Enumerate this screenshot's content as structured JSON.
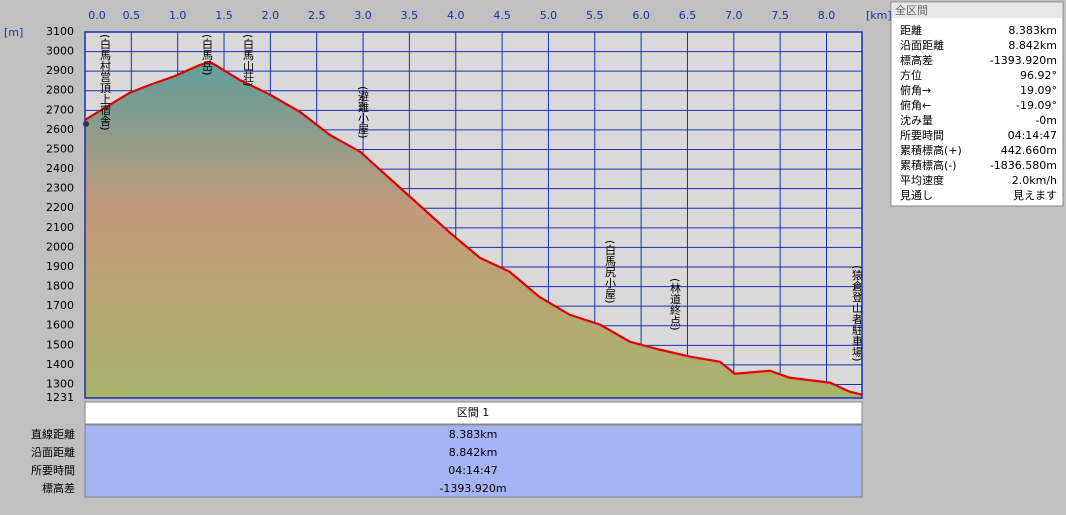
{
  "chart_data": {
    "type": "line",
    "x_unit": "[km]",
    "y_unit": "[m]",
    "x": [
      0,
      0.48,
      0.7,
      0.97,
      1.24,
      1.35,
      1.67,
      2.0,
      2.32,
      2.64,
      2.97,
      3.4,
      3.94,
      4.26,
      4.58,
      4.9,
      5.23,
      5.56,
      5.88,
      6.2,
      6.53,
      6.85,
      7.01,
      7.39,
      7.6,
      8.04,
      8.25,
      8.383
    ],
    "values": [
      2651,
      2789,
      2830,
      2875,
      2932,
      2947,
      2855,
      2779,
      2692,
      2575,
      2488,
      2304,
      2074,
      1947,
      1876,
      1748,
      1656,
      1605,
      1518,
      1478,
      1442,
      1416,
      1355,
      1370,
      1335,
      1309,
      1263,
      1248
    ],
    "color": "#e00000",
    "xlim": [
      0,
      8.383
    ],
    "ylim": [
      1231,
      3100
    ],
    "xticks": [
      {
        "value": 0,
        "label": "0.0"
      },
      0.5,
      {
        "value": 1,
        "label": "1.0"
      },
      1.5,
      {
        "value": 2,
        "label": "2.0"
      },
      2.5,
      {
        "value": 3,
        "label": "3.0"
      },
      3.5,
      {
        "value": 4,
        "label": "4.0"
      },
      4.5,
      {
        "value": 5,
        "label": "5.0"
      },
      5.5,
      {
        "value": 6,
        "label": "6.0"
      },
      6.5,
      {
        "value": 7,
        "label": "7.0"
      },
      7.5,
      {
        "value": 8,
        "label": "8.0"
      }
    ],
    "yticks": [
      1231,
      1300,
      1400,
      1500,
      1600,
      1700,
      1800,
      1900,
      2000,
      2100,
      2200,
      2300,
      2400,
      2500,
      2600,
      2700,
      2800,
      2900,
      3000,
      3100
    ],
    "grid": true,
    "annotations": [
      "(白馬村営頂上宿舎)",
      "(白馬岳)",
      "(白馬山荘)",
      "(避難小屋)",
      "(白馬尻小屋)",
      "(林道終点)",
      "(猿倉登山者駐車場)"
    ]
  },
  "summary": {
    "title": "全区間",
    "rows": [
      [
        "距離",
        "8.383km"
      ],
      [
        "沿面距離",
        "8.842km"
      ],
      [
        "標高差",
        "-1393.920m"
      ],
      [
        "方位",
        "96.92°"
      ],
      [
        "俯角→",
        "19.09°"
      ],
      [
        "俯角←",
        "-19.09°"
      ],
      [
        "沈み量",
        "-0m"
      ],
      [
        "所要時間",
        "04:14:47"
      ],
      [
        "累積標高(+)",
        "442.660m"
      ],
      [
        "累積標高(-)",
        "-1836.580m"
      ],
      [
        "平均速度",
        "2.0km/h"
      ],
      [
        "見通し",
        "見えます"
      ]
    ]
  },
  "table": {
    "header": "区間 1",
    "rows": [
      [
        "直線距離",
        "8.383km"
      ],
      [
        "沿面距離",
        "8.842km"
      ],
      [
        "所要時間",
        "04:14:47"
      ],
      [
        "標高差",
        "-1393.920m"
      ]
    ]
  }
}
